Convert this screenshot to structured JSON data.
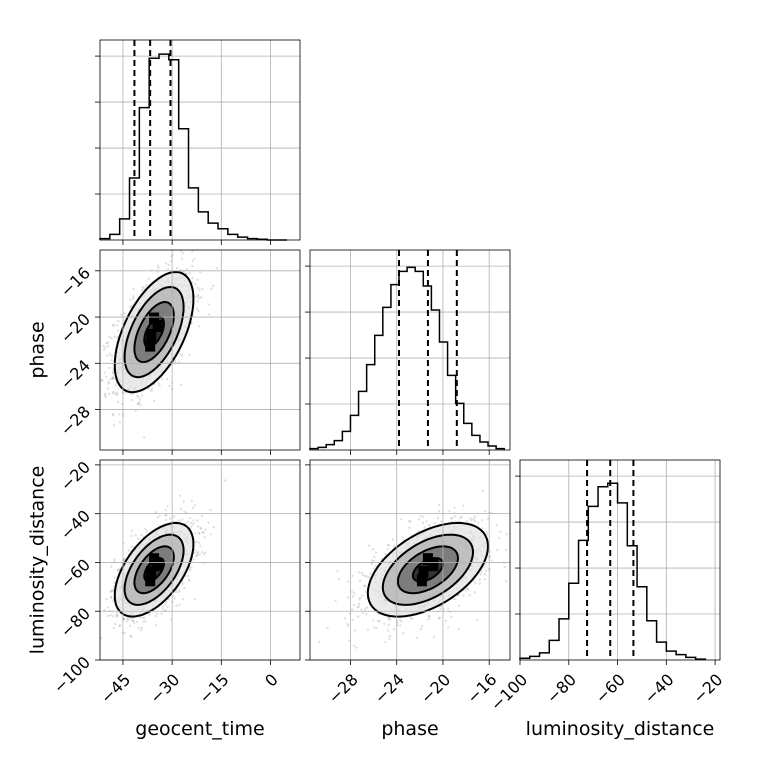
{
  "chart_data": {
    "type": "corner",
    "parameters": [
      "geocent_time",
      "phase",
      "luminosity_distance"
    ],
    "axes": {
      "geocent_time": {
        "label": "geocent_time",
        "range": [
          -52,
          9
        ],
        "ticks": [
          -45,
          -30,
          -15,
          0
        ],
        "tick_labels": [
          "−45",
          "−30",
          "−15",
          "0"
        ]
      },
      "phase": {
        "label": "phase",
        "range": [
          -31.5,
          -14.2
        ],
        "ticks": [
          -28,
          -24,
          -20,
          -16
        ],
        "tick_labels": [
          "−28",
          "−24",
          "−20",
          "−16"
        ]
      },
      "luminosity_distance": {
        "label": "luminosity_distance",
        "range": [
          -100,
          -18
        ],
        "ticks": [
          -100,
          -80,
          -60,
          -40,
          -20
        ],
        "tick_labels": [
          "−100",
          "−80",
          "−60",
          "−40",
          "−20"
        ]
      }
    },
    "histograms": {
      "geocent_time": {
        "bin_edges": [
          -52,
          -49,
          -46,
          -43,
          -40,
          -37,
          -34,
          -31,
          -28,
          -25,
          -22,
          -19,
          -16,
          -13,
          -10,
          -7,
          -4,
          -1,
          2,
          5
        ],
        "counts": [
          2,
          8,
          30,
          88,
          188,
          258,
          264,
          256,
          158,
          74,
          40,
          24,
          16,
          8,
          4,
          2,
          1,
          0,
          0
        ],
        "ymax": 284,
        "quantiles": [
          -41.5,
          -36.7,
          -30.5
        ]
      },
      "phase": {
        "bin_edges": [
          -31.5,
          -30.8,
          -30.1,
          -29.4,
          -28.7,
          -28.0,
          -27.3,
          -26.6,
          -25.9,
          -25.2,
          -24.5,
          -23.8,
          -23.1,
          -22.4,
          -21.7,
          -21.0,
          -20.3,
          -19.6,
          -18.9,
          -18.2,
          -17.5,
          -16.8,
          -16.1,
          -15.4,
          -14.7
        ],
        "counts": [
          2,
          4,
          8,
          14,
          28,
          52,
          88,
          128,
          172,
          214,
          248,
          268,
          274,
          268,
          246,
          210,
          162,
          112,
          70,
          40,
          22,
          12,
          6,
          2
        ],
        "ymax": 300,
        "quantiles": [
          -23.8,
          -21.3,
          -18.8
        ]
      },
      "luminosity_distance": {
        "bin_edges": [
          -100,
          -96,
          -92,
          -88,
          -84,
          -80,
          -76,
          -72,
          -68,
          -64,
          -60,
          -56,
          -52,
          -48,
          -44,
          -40,
          -36,
          -32,
          -28,
          -24
        ],
        "counts": [
          2,
          4,
          8,
          22,
          46,
          86,
          134,
          172,
          194,
          198,
          176,
          128,
          82,
          44,
          20,
          10,
          6,
          3,
          1
        ],
        "ymax": 224,
        "quantiles": [
          -72.5,
          -63.0,
          -53.5
        ]
      }
    },
    "joint": [
      {
        "x": "geocent_time",
        "y": "phase",
        "mean": [
          -35.5,
          -21.3
        ],
        "sigma": [
          6.0,
          2.6
        ],
        "rho": 0.55,
        "contour_levels_sigma": [
          0.5,
          1.0,
          1.5,
          2.0
        ]
      },
      {
        "x": "geocent_time",
        "y": "luminosity_distance",
        "mean": [
          -35.5,
          -63.0
        ],
        "sigma": [
          6.0,
          9.6
        ],
        "rho": 0.55,
        "contour_levels_sigma": [
          0.5,
          1.0,
          1.5,
          2.0
        ]
      },
      {
        "x": "phase",
        "y": "luminosity_distance",
        "mean": [
          -21.3,
          -63.0
        ],
        "sigma": [
          2.6,
          9.6
        ],
        "rho": 0.5,
        "contour_levels_sigma": [
          0.5,
          1.0,
          1.5,
          2.0
        ]
      }
    ],
    "grid": true,
    "color": "#000000"
  }
}
